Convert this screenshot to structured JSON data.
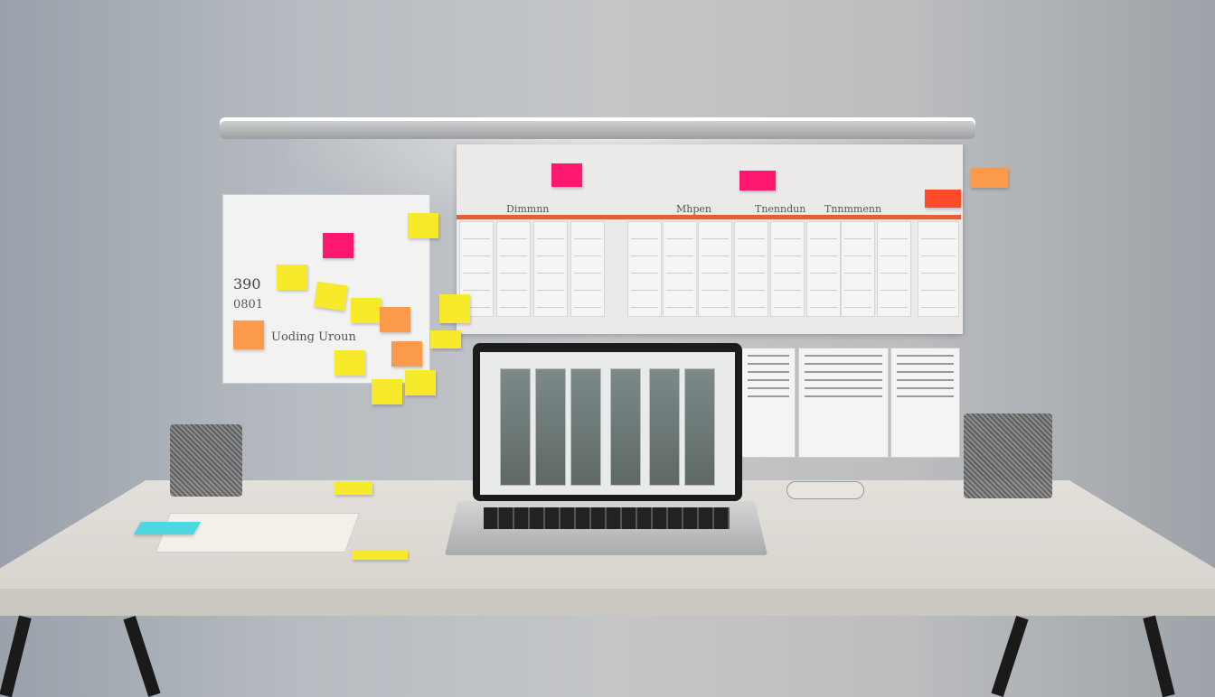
{
  "scene": "desk workspace with wall planner, sticky notes and laptop",
  "whiteboard": {
    "label": "Uoding Uroun",
    "numbers": [
      "390",
      "0801"
    ]
  },
  "planner": {
    "headers": [
      "Dimmnn",
      "Mhpen",
      "Tnenndun",
      "Tnnmmenn"
    ]
  },
  "colors": {
    "wall": "#b7bcc2",
    "desk": "#e3dfda",
    "accent_line": "#e0603a",
    "sticky_yellow": "#f7ea2a",
    "sticky_pink": "#ff1870",
    "sticky_orange": "#fb9a4a"
  }
}
